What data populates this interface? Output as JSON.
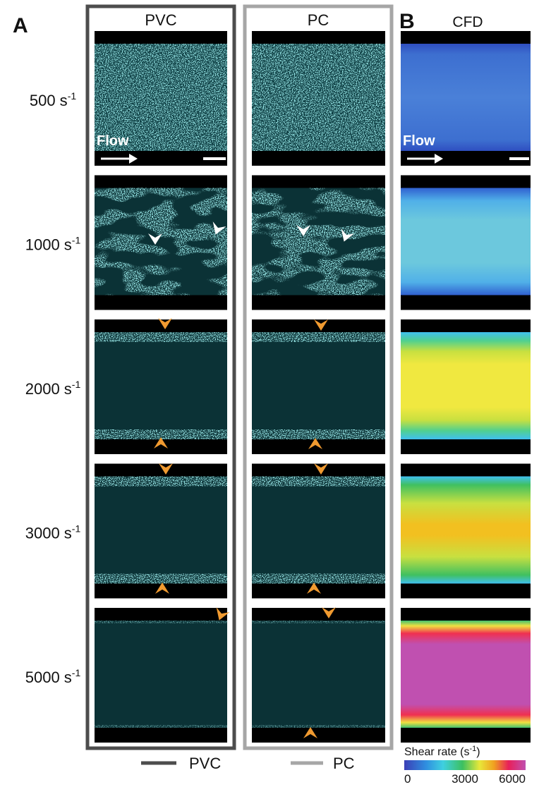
{
  "panels": {
    "a": "A",
    "b": "B"
  },
  "columns": [
    "PVC",
    "PC",
    "CFD"
  ],
  "rows": [
    {
      "rate": "500 s",
      "exp": "-1"
    },
    {
      "rate": "1000 s",
      "exp": "-1"
    },
    {
      "rate": "2000 s",
      "exp": "-1"
    },
    {
      "rate": "3000 s",
      "exp": "-1"
    },
    {
      "rate": "5000 s",
      "exp": "-1"
    }
  ],
  "annotation": "Flow",
  "colorbar": {
    "title": "Shear rate (s",
    "title_exp": "-1",
    "title_end": ")",
    "lim": [
      0,
      6000
    ],
    "ticks": [
      0,
      3000,
      6000
    ]
  },
  "legend": [
    {
      "name": "PVC",
      "color": "#4d4d4d"
    },
    {
      "name": "PC",
      "color": "#a6a6a6"
    }
  ]
}
